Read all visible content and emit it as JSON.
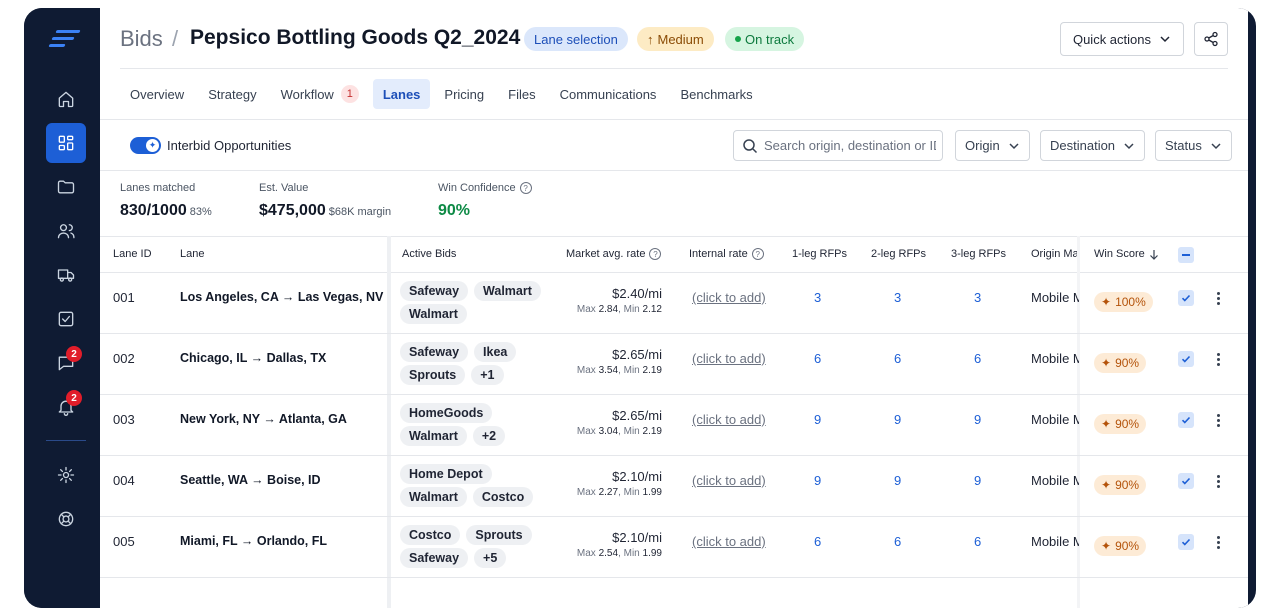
{
  "sidebar": {
    "items": [
      {
        "icon": "home-icon",
        "badge": ""
      },
      {
        "icon": "dashboard-icon",
        "badge": ""
      },
      {
        "icon": "folder-icon",
        "badge": ""
      },
      {
        "icon": "users-icon",
        "badge": ""
      },
      {
        "icon": "truck-icon",
        "badge": ""
      },
      {
        "icon": "checkbox-icon",
        "badge": ""
      },
      {
        "icon": "chat-icon",
        "badge": "2"
      },
      {
        "icon": "bell-icon",
        "badge": "2"
      },
      {
        "icon": "gear-icon",
        "badge": ""
      },
      {
        "icon": "lifebuoy-icon",
        "badge": ""
      }
    ]
  },
  "header": {
    "parent": "Bids",
    "separator": "/",
    "title": "Pepsico Bottling Goods Q2_2024",
    "pills": {
      "stage": "Lane selection",
      "priority": "Medium",
      "priority_icon": "↑",
      "status": "On track"
    },
    "quick_actions": "Quick actions"
  },
  "tabs": [
    {
      "label": "Overview",
      "badge": ""
    },
    {
      "label": "Strategy",
      "badge": ""
    },
    {
      "label": "Workflow",
      "badge": "1"
    },
    {
      "label": "Lanes",
      "badge": "",
      "active": true
    },
    {
      "label": "Pricing",
      "badge": ""
    },
    {
      "label": "Files",
      "badge": ""
    },
    {
      "label": "Communications",
      "badge": ""
    },
    {
      "label": "Benchmarks",
      "badge": ""
    }
  ],
  "filters": {
    "toggle_label": "Interbid Opportunities",
    "toggle_on": true,
    "search_placeholder": "Search origin, destination or ID",
    "origin": "Origin",
    "destination": "Destination",
    "status": "Status"
  },
  "stats": {
    "lanes_matched_label": "Lanes matched",
    "lanes_matched": "830/1000",
    "lanes_matched_pct": "83%",
    "est_value_label": "Est. Value",
    "est_value": "$475,000",
    "est_value_margin": "$68K margin",
    "win_conf_label": "Win Confidence",
    "win_conf": "90%"
  },
  "table": {
    "headers": {
      "lane_id": "Lane ID",
      "lane": "Lane",
      "active_bids": "Active Bids",
      "market_rate": "Market avg. rate",
      "internal_rate": "Internal rate",
      "leg1": "1-leg RFPs",
      "leg2": "2-leg RFPs",
      "leg3": "3-leg RFPs",
      "origin_market": "Origin Mar",
      "win_score": "Win Score"
    },
    "rows": [
      {
        "id": "001",
        "lane": "Los Angeles, CA → Las Vegas, NV",
        "bids": [
          "Safeway",
          "Walmart",
          "Walmart"
        ],
        "rate": "$2.40/mi",
        "max": "2.84",
        "min": "2.12",
        "internal": "(click to add)",
        "leg1": "3",
        "leg2": "3",
        "leg3": "3",
        "origin": "Mobile M",
        "score": "100%"
      },
      {
        "id": "002",
        "lane": "Chicago, IL → Dallas, TX",
        "bids": [
          "Safeway",
          "Ikea",
          "Sprouts",
          "+1"
        ],
        "rate": "$2.65/mi",
        "max": "3.54",
        "min": "2.19",
        "internal": "(click to add)",
        "leg1": "6",
        "leg2": "6",
        "leg3": "6",
        "origin": "Mobile M",
        "score": "90%"
      },
      {
        "id": "003",
        "lane": "New York, NY → Atlanta, GA",
        "bids": [
          "HomeGoods",
          "Walmart",
          "+2"
        ],
        "rate": "$2.65/mi",
        "max": "3.04",
        "min": "2.19",
        "internal": "(click to add)",
        "leg1": "9",
        "leg2": "9",
        "leg3": "9",
        "origin": "Mobile M",
        "score": "90%"
      },
      {
        "id": "004",
        "lane": "Seattle, WA → Boise, ID",
        "bids": [
          "Home Depot",
          "Walmart",
          "Costco"
        ],
        "rate": "$2.10/mi",
        "max": "2.27",
        "min": "1.99",
        "internal": "(click to add)",
        "leg1": "9",
        "leg2": "9",
        "leg3": "9",
        "origin": "Mobile M",
        "score": "90%"
      },
      {
        "id": "005",
        "lane": "Miami, FL → Orlando, FL",
        "bids": [
          "Costco",
          "Sprouts",
          "Safeway",
          "+5"
        ],
        "rate": "$2.10/mi",
        "max": "2.54",
        "min": "1.99",
        "internal": "(click to add)",
        "leg1": "6",
        "leg2": "6",
        "leg3": "6",
        "origin": "Mobile M",
        "score": "90%"
      }
    ],
    "max_label": "Max",
    "min_label": "Min"
  },
  "colors": {
    "sidebar": "#0f1b33",
    "accent": "#1d5fd6",
    "win_score_bg": "#fdebd6"
  }
}
